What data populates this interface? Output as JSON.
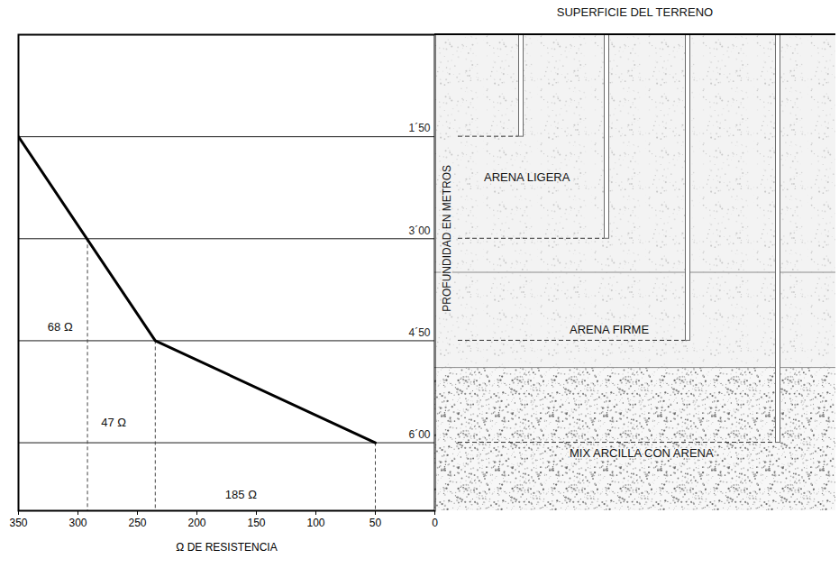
{
  "chart_data": {
    "type": "line",
    "xlabel": "Ω DE RESISTENCIA",
    "x": [
      350,
      235,
      50
    ],
    "values": [
      1.5,
      4.5,
      6.0
    ],
    "color": "#000000",
    "xlim": [
      350,
      0
    ],
    "xticks": [
      350,
      300,
      250,
      200,
      150,
      100,
      50,
      0
    ],
    "ylim": [
      7,
      0
    ],
    "yticks": [
      {
        "value": 1.5,
        "label": "1´50"
      },
      {
        "value": 3.0,
        "label": "3´00"
      },
      {
        "value": 4.5,
        "label": "4´50"
      },
      {
        "value": 6.0,
        "label": "6´00"
      }
    ],
    "grid": true,
    "drop_lines": {
      "x": [
        292,
        235,
        50
      ],
      "y": [
        3.0,
        4.5,
        6.0
      ]
    },
    "annotations": [
      {
        "text": "68 Ω",
        "x": 315,
        "y": 4.3
      },
      {
        "text": "47 Ω",
        "x": 270,
        "y": 5.7
      },
      {
        "text": "185 Ω",
        "x": 163,
        "y": 6.76
      }
    ]
  },
  "soil_profile": {
    "title": "SUPERFICIE DEL TERRENO",
    "ylabel": "PROFUNDIDAD EN METROS",
    "layers": [
      {
        "label": "ARENA LIGERA",
        "top": 0,
        "bottom": 3.5
      },
      {
        "label": "ARENA FIRME",
        "top": 3.5,
        "bottom": 4.9
      },
      {
        "label": "MIX ARCILLA CON ARENA",
        "top": 4.9,
        "bottom": 7
      }
    ],
    "rods": [
      1.5,
      3.0,
      4.5,
      6.0
    ]
  }
}
